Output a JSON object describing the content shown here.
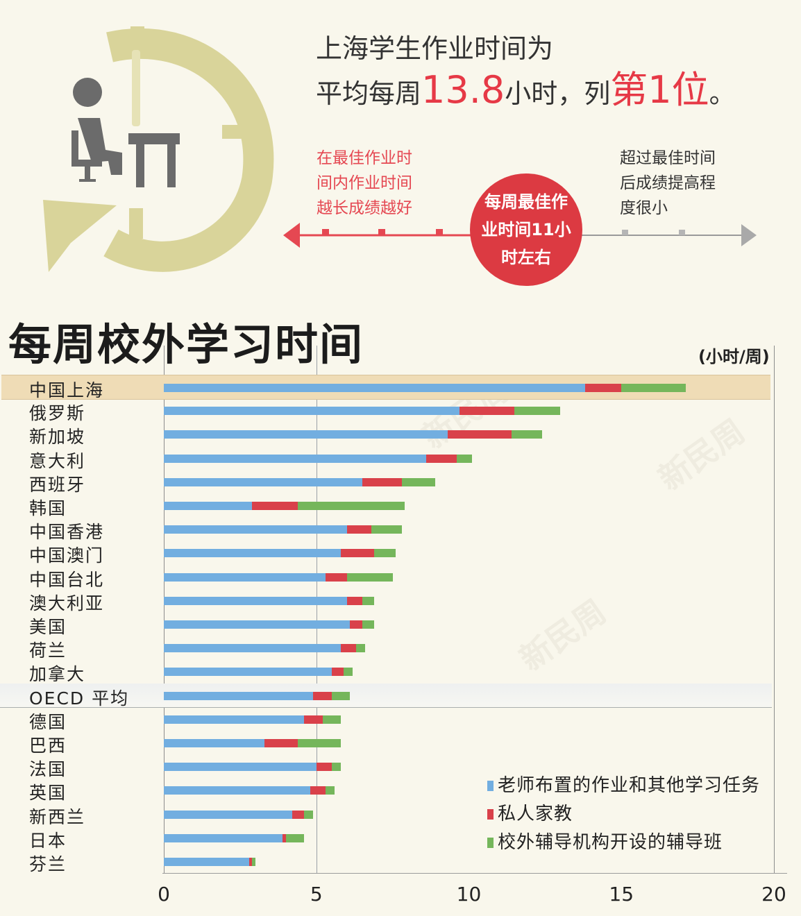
{
  "header": {
    "headline_line1": "上海学生作业时间为",
    "headline_prefix": "平均每周",
    "headline_value": "13.8",
    "headline_mid": "小时，列",
    "headline_rank": "第1位",
    "headline_end": "。",
    "left_note": [
      "在最佳作业时",
      "间内作业时间",
      "越长成绩越好"
    ],
    "right_note": [
      "超过最佳时间",
      "后成绩提高程",
      "度很小"
    ],
    "badge": [
      "每周最佳作",
      "业时间11小",
      "时左右"
    ],
    "icon": "student-at-desk-clock-icon"
  },
  "colors": {
    "background": "#f9f7ec",
    "accent_red": "#e63946",
    "badge_red": "#dc3a42",
    "clock_khaki": "#d9d49a",
    "icon_gray": "#6b6b6b",
    "series_blue": "#72aee0",
    "series_red": "#d9414a",
    "series_green": "#75b65b",
    "highlight_row": "#efdcb6"
  },
  "chart_data": {
    "type": "bar",
    "orientation": "horizontal",
    "stacked": true,
    "title": "每周校外学习时间",
    "unit_label": "(小时/周)",
    "xlabel": "",
    "ylabel": "",
    "xlim": [
      0,
      20
    ],
    "xticks": [
      "0",
      "5",
      "10",
      "15",
      "20"
    ],
    "gridlines": [
      0,
      5,
      20
    ],
    "legend_position": "bottom-right",
    "highlight": [
      "中国上海",
      "OECD 平均"
    ],
    "categories": [
      "中国上海",
      "俄罗斯",
      "新加坡",
      "意大利",
      "西班牙",
      "韩国",
      "中国香港",
      "中国澳门",
      "中国台北",
      "澳大利亚",
      "美国",
      "荷兰",
      "加拿大",
      "OECD 平均",
      "德国",
      "巴西",
      "法国",
      "英国",
      "新西兰",
      "日本",
      "芬兰"
    ],
    "series": [
      {
        "name": "老师布置的作业和其他学习任务",
        "color": "#72aee0",
        "values": [
          13.8,
          9.7,
          9.3,
          8.6,
          6.5,
          2.9,
          6.0,
          5.8,
          5.3,
          6.0,
          6.1,
          5.8,
          5.5,
          4.9,
          4.6,
          3.3,
          5.0,
          4.8,
          4.2,
          3.9,
          2.8
        ]
      },
      {
        "name": "私人家教",
        "color": "#d9414a",
        "values": [
          1.2,
          1.8,
          2.1,
          1.0,
          1.3,
          1.5,
          0.8,
          1.1,
          0.7,
          0.5,
          0.4,
          0.5,
          0.4,
          0.6,
          0.6,
          1.1,
          0.5,
          0.5,
          0.4,
          0.1,
          0.1
        ]
      },
      {
        "name": "校外辅导机构开设的辅导班",
        "color": "#75b65b",
        "values": [
          2.1,
          1.5,
          1.0,
          0.5,
          1.1,
          3.5,
          1.0,
          0.7,
          1.5,
          0.4,
          0.4,
          0.3,
          0.3,
          0.6,
          0.6,
          1.4,
          0.3,
          0.3,
          0.3,
          0.6,
          0.1
        ]
      }
    ]
  },
  "legend": {
    "items": [
      {
        "label": "老师布置的作业和其他学习任务",
        "color": "#72aee0"
      },
      {
        "label": "私人家教",
        "color": "#d9414a"
      },
      {
        "label": "校外辅导机构开设的辅导班",
        "color": "#75b65b"
      }
    ]
  }
}
